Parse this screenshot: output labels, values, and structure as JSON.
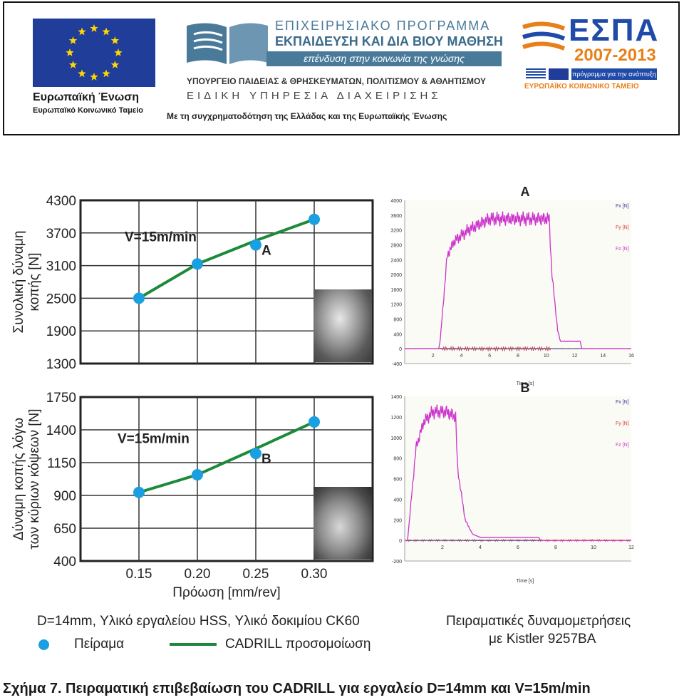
{
  "banner": {
    "eu": {
      "line1": "Ευρωπαϊκή Ένωση",
      "line2": "Ευρωπαϊκό Κοινωνικό Ταμείο",
      "flag_color": "#1f3d99",
      "star_color": "#ffd700"
    },
    "programme": {
      "line1": "ΕΠΙΧΕΙΡΗΣΙΑΚΟ ΠΡΟΓΡΑΜΜΑ",
      "line2": "ΕΚΠΑΙΔΕΥΣΗ ΚΑΙ ΔΙΑ ΒΙΟΥ ΜΑΘΗΣΗ",
      "line3": "επένδυση στην κοινωνία της γνώσης",
      "line4": "ΥΠΟΥΡΓΕΙΟ ΠΑΙΔΕΙΑΣ & ΘΡΗΣΚΕΥΜΑΤΩΝ, ΠΟΛΙΤΙΣΜΟΥ & ΑΘΛΗΤΙΣΜΟΥ",
      "line5": "ΕΙΔΙΚΗ ΥΠΗΡΕΣΙΑ ΔΙΑΧΕΙΡΙΣΗΣ",
      "line6": "Με τη συγχρηματοδότηση της Ελλάδας και της Ευρωπαϊκής Ένωσης",
      "accent": "#4a7a9a"
    },
    "espa": {
      "title": "ΕΣΠΑ",
      "years": "2007-2013",
      "tagline": "πρόγραμμα για την ανάπτυξη",
      "fund": "ΕΥΡΩΠΑΪΚΟ ΚΟΙΝΩΝΙΚΟ ΤΑΜΕΙΟ",
      "blue": "#1f4aa8",
      "orange": "#e8801a"
    }
  },
  "chart_data": [
    {
      "type": "line",
      "id": "total-force",
      "ylabel_lines": [
        "Συνολική δύναμη",
        "κοπής [N]"
      ],
      "x": [
        0.15,
        0.2,
        0.25,
        0.3
      ],
      "xlim": [
        0.1,
        0.35
      ],
      "ylim": [
        1300,
        4300
      ],
      "yticks": [
        "4300",
        "3700",
        "3100",
        "2500",
        "1900",
        "1300"
      ],
      "series": [
        {
          "role": "experiment",
          "values": [
            2500,
            3130,
            3480,
            3950
          ],
          "color": "#1aa0e0"
        },
        {
          "role": "simulation",
          "values": [
            2500,
            3130,
            3560,
            3950
          ],
          "color": "#1c8a3a"
        }
      ],
      "annotation": "V=15m/min",
      "point_label": "A",
      "grid": true
    },
    {
      "type": "line",
      "id": "cutting-edge-force",
      "ylabel_lines": [
        "Δύναμη κοπής λόγω",
        "των κύριων κόψεων [N]"
      ],
      "x": [
        0.15,
        0.2,
        0.25,
        0.3
      ],
      "xlim": [
        0.1,
        0.35
      ],
      "ylim": [
        400,
        1750
      ],
      "yticks": [
        "1750",
        "1400",
        "1150",
        "900",
        "650",
        "400"
      ],
      "xticks": [
        "0.15",
        "0.20",
        "0.25",
        "0.30"
      ],
      "xlabel": "Πρόωση [mm/rev]",
      "series": [
        {
          "role": "experiment",
          "values": [
            965,
            1110,
            1285,
            1545
          ],
          "color": "#1aa0e0"
        },
        {
          "role": "simulation",
          "values": [
            965,
            1110,
            1325,
            1545
          ],
          "color": "#1c8a3a"
        }
      ],
      "annotation": "V=15m/min",
      "point_label": "B",
      "grid": true
    },
    {
      "type": "line",
      "id": "kistler-A",
      "title": "A",
      "xlabel": "Time [s]",
      "xlim": [
        0,
        16
      ],
      "ylim": [
        -400,
        4000
      ],
      "xticks": [
        "2",
        "4",
        "6",
        "8",
        "10",
        "12",
        "14",
        "16"
      ],
      "yticks": [
        "4000",
        "3600",
        "3200",
        "2800",
        "2400",
        "2000",
        "1600",
        "1200",
        "800",
        "400",
        "0",
        "-400"
      ],
      "legend": [
        "Fx [N]",
        "Fy [N]",
        "Fz [N]"
      ],
      "legend_colors": [
        "#3a3a9a",
        "#d04040",
        "#cc33cc"
      ],
      "fz_profile": {
        "t": [
          0,
          2.4,
          2.5,
          3.0,
          3.5,
          4.5,
          6,
          8,
          10.2,
          10.4,
          10.8,
          11.0,
          12.4,
          12.5,
          16
        ],
        "v": [
          0,
          0,
          200,
          2500,
          2900,
          3200,
          3500,
          3500,
          3500,
          2000,
          500,
          200,
          200,
          0,
          0
        ]
      }
    },
    {
      "type": "line",
      "id": "kistler-B",
      "title": "B",
      "xlabel": "Time [s]",
      "xlim": [
        0,
        12
      ],
      "ylim": [
        -200,
        1400
      ],
      "xticks": [
        "2",
        "4",
        "6",
        "8",
        "10",
        "12"
      ],
      "yticks": [
        "1400",
        "1200",
        "1000",
        "800",
        "600",
        "400",
        "200",
        "0",
        "-200"
      ],
      "legend": [
        "Fx [N]",
        "Fy [N]",
        "Fz [N]"
      ],
      "legend_colors": [
        "#3a3a9a",
        "#d04040",
        "#cc33cc"
      ],
      "fz_profile": {
        "t": [
          0,
          0.15,
          0.6,
          1.0,
          1.5,
          2.2,
          2.7,
          2.8,
          3.2,
          3.6,
          4.0,
          7.1,
          7.2,
          12
        ],
        "v": [
          0,
          0,
          900,
          1150,
          1250,
          1250,
          1200,
          700,
          200,
          60,
          30,
          30,
          0,
          0
        ]
      }
    }
  ],
  "figure_text": {
    "a_label": "A",
    "b_label": "B",
    "v_annotation": "V=15m/min",
    "conditions": "D=14mm, Υλικό εργαλείου HSS, Υλικό δοκιμίου CK60",
    "legend_experiment": "Πείραμα",
    "legend_simulation": "CADRILL προσομοίωση",
    "measurements_line1": "Πειραματικές δυναμομετρήσεις",
    "measurements_line2": "με Kistler 9257BA"
  },
  "caption": "Σχήμα 7. Πειραματική επιβεβαίωση του CADRILL για εργαλείο D=14mm και V=15m/min"
}
